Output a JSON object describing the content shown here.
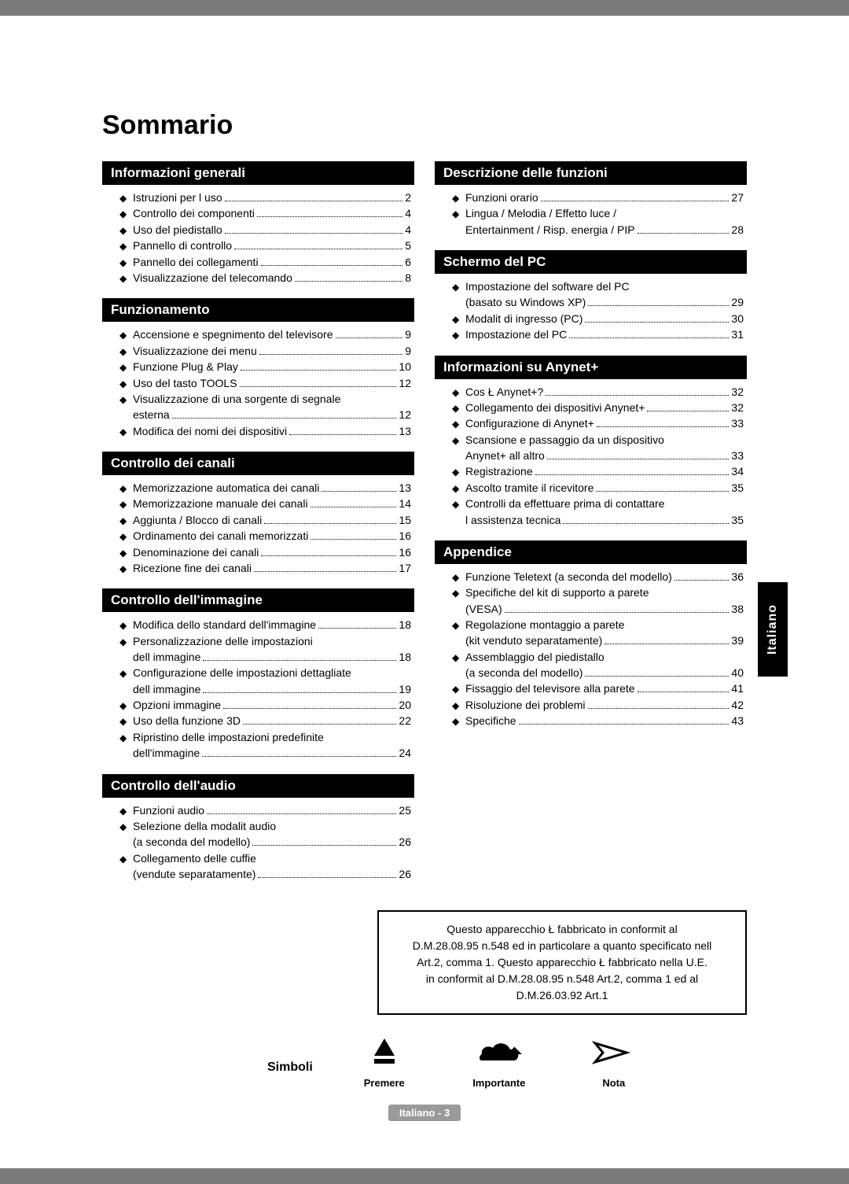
{
  "title": "Sommario",
  "side_tab": "Italiano",
  "footer": "Italiano - 3",
  "colors": {
    "header_bg": "#000000",
    "header_fg": "#ffffff",
    "page_bg": "#ffffff"
  },
  "notice_lines": [
    "Questo apparecchio Ł fabbricato in conformit al",
    "D.M.28.08.95 n.548 ed in particolare a quanto specificato nell",
    "Art.2, comma 1. Questo apparecchio Ł fabbricato nella U.E.",
    "in conformit al D.M.28.08.95 n.548 Art.2, comma 1 ed al",
    "D.M.26.03.92 Art.1"
  ],
  "symbols": {
    "label": "Simboli",
    "items": [
      {
        "name": "Premere",
        "icon": "press"
      },
      {
        "name": "Importante",
        "icon": "important"
      },
      {
        "name": "Nota",
        "icon": "note"
      }
    ]
  },
  "left_sections": [
    {
      "title": "Informazioni generali",
      "items": [
        {
          "lines": [
            "Istruzioni per l uso"
          ],
          "page": "2"
        },
        {
          "lines": [
            "Controllo dei componenti"
          ],
          "page": "4"
        },
        {
          "lines": [
            "Uso del piedistallo"
          ],
          "page": "4"
        },
        {
          "lines": [
            "Pannello di controllo"
          ],
          "page": "5"
        },
        {
          "lines": [
            "Pannello dei collegamenti"
          ],
          "page": "6"
        },
        {
          "lines": [
            "Visualizzazione del telecomando"
          ],
          "page": "8"
        }
      ]
    },
    {
      "title": "Funzionamento",
      "items": [
        {
          "lines": [
            "Accensione e spegnimento del televisore"
          ],
          "page": "9"
        },
        {
          "lines": [
            "Visualizzazione dei menu"
          ],
          "page": "9"
        },
        {
          "lines": [
            "Funzione Plug & Play"
          ],
          "page": "10"
        },
        {
          "lines": [
            "Uso del tasto TOOLS"
          ],
          "page": "12"
        },
        {
          "lines": [
            "Visualizzazione di una sorgente di segnale",
            "esterna"
          ],
          "page": "12"
        },
        {
          "lines": [
            "Modifica dei nomi dei dispositivi"
          ],
          "page": "13"
        }
      ]
    },
    {
      "title": "Controllo dei canali",
      "items": [
        {
          "lines": [
            "Memorizzazione automatica dei canali"
          ],
          "page": "13"
        },
        {
          "lines": [
            "Memorizzazione manuale dei canali"
          ],
          "page": "14"
        },
        {
          "lines": [
            "Aggiunta / Blocco di canali"
          ],
          "page": "15"
        },
        {
          "lines": [
            "Ordinamento dei canali memorizzati"
          ],
          "page": "16"
        },
        {
          "lines": [
            "Denominazione dei canali"
          ],
          "page": "16"
        },
        {
          "lines": [
            "Ricezione fine dei canali"
          ],
          "page": "17"
        }
      ]
    },
    {
      "title": "Controllo dell'immagine",
      "items": [
        {
          "lines": [
            "Modifica dello standard dell'immagine"
          ],
          "page": "18"
        },
        {
          "lines": [
            "Personalizzazione delle impostazioni",
            "dell immagine"
          ],
          "page": "18"
        },
        {
          "lines": [
            "Configurazione delle impostazioni dettagliate",
            "dell immagine"
          ],
          "page": "19"
        },
        {
          "lines": [
            "Opzioni immagine"
          ],
          "page": "20"
        },
        {
          "lines": [
            "Uso della funzione 3D"
          ],
          "page": "22"
        },
        {
          "lines": [
            "Ripristino delle impostazioni predefinite",
            "dell'immagine"
          ],
          "page": "24"
        }
      ]
    },
    {
      "title": "Controllo dell'audio",
      "items": [
        {
          "lines": [
            "Funzioni audio"
          ],
          "page": "25"
        },
        {
          "lines": [
            "Selezione della modalit  audio",
            "(a seconda del modello)"
          ],
          "page": "26"
        },
        {
          "lines": [
            "Collegamento delle cuffie",
            "(vendute separatamente)"
          ],
          "page": "26"
        }
      ]
    }
  ],
  "right_sections": [
    {
      "title": "Descrizione delle funzioni",
      "items": [
        {
          "lines": [
            "Funzioni orario"
          ],
          "page": "27"
        },
        {
          "lines": [
            "Lingua / Melodia / Effetto luce /",
            "Entertainment / Risp. energia / PIP"
          ],
          "page": "28"
        }
      ]
    },
    {
      "title": "Schermo del PC",
      "items": [
        {
          "lines": [
            "Impostazione del software del PC",
            "(basato su Windows XP)"
          ],
          "page": "29"
        },
        {
          "lines": [
            "Modalit  di ingresso (PC)"
          ],
          "page": "30"
        },
        {
          "lines": [
            "Impostazione del PC"
          ],
          "page": "31"
        }
      ]
    },
    {
      "title": "Informazioni su Anynet+",
      "items": [
        {
          "lines": [
            "Cos Ł Anynet+?"
          ],
          "page": "32"
        },
        {
          "lines": [
            "Collegamento dei dispositivi Anynet+"
          ],
          "page": "32"
        },
        {
          "lines": [
            "Configurazione di Anynet+"
          ],
          "page": "33"
        },
        {
          "lines": [
            "Scansione e passaggio da un dispositivo",
            "Anynet+ all altro"
          ],
          "page": "33"
        },
        {
          "lines": [
            "Registrazione"
          ],
          "page": "34"
        },
        {
          "lines": [
            "Ascolto tramite il ricevitore"
          ],
          "page": "35"
        },
        {
          "lines": [
            "Controlli da effettuare prima di contattare",
            "l assistenza tecnica"
          ],
          "page": "35"
        }
      ]
    },
    {
      "title": "Appendice",
      "items": [
        {
          "lines": [
            "Funzione Teletext (a seconda del modello)"
          ],
          "page": "36"
        },
        {
          "lines": [
            "Specifiche del kit di supporto a parete",
            "(VESA)"
          ],
          "page": "38"
        },
        {
          "lines": [
            "Regolazione montaggio a parete",
            "(kit venduto separatamente)"
          ],
          "page": "39"
        },
        {
          "lines": [
            "Assemblaggio del piedistallo",
            "(a seconda del modello)"
          ],
          "page": "40"
        },
        {
          "lines": [
            "Fissaggio del televisore alla parete"
          ],
          "page": "41"
        },
        {
          "lines": [
            "Risoluzione dei problemi"
          ],
          "page": "42"
        },
        {
          "lines": [
            "Specifiche"
          ],
          "page": "43"
        }
      ]
    }
  ]
}
